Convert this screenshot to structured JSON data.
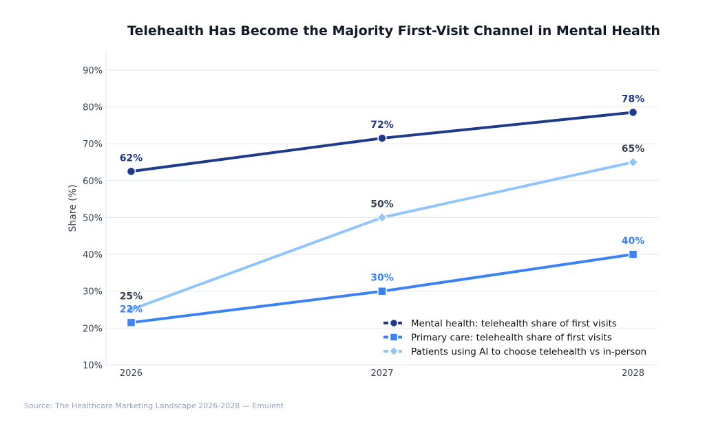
{
  "chart_data": {
    "type": "line",
    "title": "Telehealth Has Become the Majority First-Visit Channel in Mental Health",
    "xlabel": "",
    "ylabel": "Share (%)",
    "x": [
      2026,
      2027,
      2028
    ],
    "x_tick_labels": [
      "2026",
      "2027",
      "2028"
    ],
    "xlim": [
      2025.9,
      2028.1
    ],
    "ylim": [
      10,
      95
    ],
    "y_ticks": [
      10,
      20,
      30,
      40,
      50,
      60,
      70,
      80,
      90
    ],
    "y_tick_labels": [
      "10%",
      "20%",
      "30%",
      "40%",
      "50%",
      "60%",
      "70%",
      "80%",
      "90%"
    ],
    "grid": "horizontal",
    "legend_placement": "bottom-right",
    "series": [
      {
        "name": "Mental health: telehealth share of first visits",
        "values": [
          62.5,
          71.5,
          78.5
        ],
        "labels": [
          "62%",
          "72%",
          "78%"
        ],
        "color": "#1e3a8a",
        "label_color": "#1e3a8a",
        "marker": "circle"
      },
      {
        "name": "Primary care: telehealth share of first visits",
        "values": [
          21.5,
          30,
          40
        ],
        "labels": [
          "22%",
          "30%",
          "40%"
        ],
        "color": "#3b82f6",
        "label_color": "#3b82f6",
        "marker": "square"
      },
      {
        "name": "Patients using AI to choose telehealth vs in-person",
        "values": [
          25,
          50,
          65
        ],
        "labels": [
          "25%",
          "50%",
          "65%"
        ],
        "color": "#93c5fd",
        "label_color": "#374151",
        "marker": "diamond"
      }
    ]
  },
  "source": "Source: The Healthcare Marketing Landscape 2026-2028 — Emulent"
}
